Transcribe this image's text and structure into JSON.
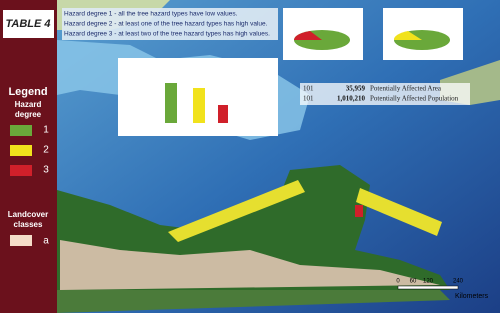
{
  "sidebar": {
    "title": "TABLE 4",
    "legend_title": "Legend",
    "hazard_title": "Hazard degree",
    "hazard_classes": [
      "1",
      "2",
      "3"
    ],
    "landcover_title": "Landcover classes",
    "landcover_classes": [
      "a"
    ]
  },
  "notes": [
    "Hazard degree 1 - all the tree hazard types have low values.",
    "Hazard degree 2 - at least one of the tree hazard types has high value.",
    "Hazard degree 3 - at least two of the tree hazard types has high values."
  ],
  "stats": [
    {
      "code": "101",
      "value": "35,959",
      "label": "Potentially Affected Area"
    },
    {
      "code": "101",
      "value": "1,010,210",
      "label": "Potentially Affected Population"
    }
  ],
  "scale": {
    "ticks": [
      "0",
      "60",
      "120",
      "240"
    ],
    "unit": "Kilometers"
  }
}
